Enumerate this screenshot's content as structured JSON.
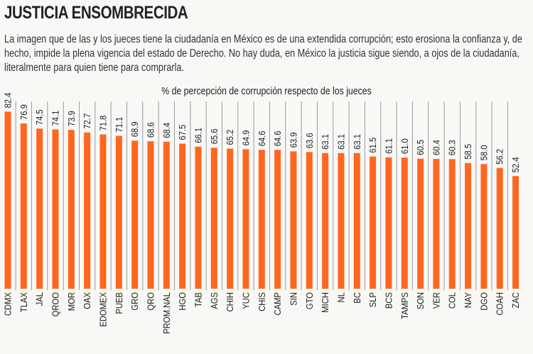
{
  "header": {
    "title": "JUSTICIA ENSOMBRECIDA",
    "description": "La  imagen que de las y los jueces tiene la ciudadanía en México es de una extendida corrupción; esto erosiona la confianza y, de hecho, impide la plena vigencia del estado de Derecho. No hay duda, en México la justicia sigue siendo, a ojos de la ciudadanía, literalmente para quien tiene para comprarla."
  },
  "chart_data": {
    "type": "bar",
    "title": "% de percepción de corrupción respecto de los jueces",
    "xlabel": "",
    "ylabel": "",
    "ylim": [
      0,
      85
    ],
    "grid": false,
    "bar_color": "#ff671f",
    "categories": [
      "CDMX",
      "TLAX",
      "JAL",
      "QROO",
      "MOR",
      "OAX",
      "EDOMEX",
      "PUEB",
      "GRO",
      "QRO",
      "PROM.NAL",
      "HGO",
      "TAB",
      "AGS",
      "CHIH",
      "YUC",
      "CHIS",
      "CAMP",
      "SIN",
      "GTO",
      "MICH",
      "NL",
      "BC",
      "SLP",
      "BCS",
      "TAMPS",
      "SON",
      "VER",
      "COL",
      "NAY",
      "DGO",
      "COAH",
      "ZAC"
    ],
    "values": [
      82.4,
      76.9,
      74.5,
      74.1,
      73.9,
      72.7,
      71.8,
      71.1,
      68.9,
      68.6,
      68.4,
      67.5,
      66.1,
      65.6,
      65.2,
      64.9,
      64.6,
      64.6,
      63.9,
      63.6,
      63.1,
      63.1,
      63.1,
      61.5,
      61.1,
      61.0,
      60.5,
      60.4,
      60.3,
      58.5,
      58.0,
      56.2,
      52.4
    ],
    "value_labels": [
      "82.4",
      "76.9",
      "74.5",
      "74.1",
      "73.9",
      "72.7",
      "71.8",
      "71.1",
      "68.9",
      "68.6",
      "68.4",
      "67.5",
      "66.1",
      "65.6",
      "65.2",
      "64.9",
      "64.6",
      "64.6",
      "63.9",
      "63.6",
      "63.1",
      "63.1",
      "63.1",
      "61.5",
      "61.1",
      "61.0",
      "60.5",
      "60.4",
      "60.3",
      "58.5",
      "58.0",
      "56.2",
      "52.4"
    ]
  }
}
